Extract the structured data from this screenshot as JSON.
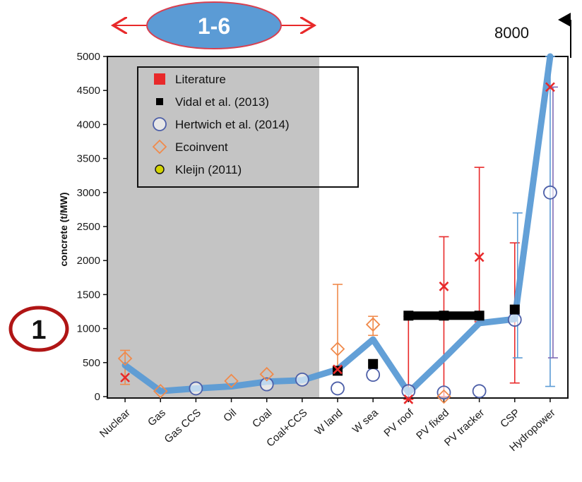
{
  "chart_data": {
    "type": "scatter",
    "title": "",
    "xlabel": "",
    "ylabel": "concrete (t/MW)",
    "ylim": [
      0,
      5000
    ],
    "yticks": [
      0,
      500,
      1000,
      1500,
      2000,
      2500,
      3000,
      3500,
      4000,
      4500,
      5000
    ],
    "categories": [
      "Nuclear",
      "Gas",
      "Gas CCS",
      "Oil",
      "Coal",
      "Coal+CCS",
      "W land",
      "W sea",
      "PV roof",
      "PV fixed",
      "PV tracker",
      "CSP",
      "Hydropower"
    ],
    "shaded_region_categories": [
      "Nuclear",
      "Gas",
      "Gas CCS",
      "Oil",
      "Coal",
      "Coal+CCS"
    ],
    "legend_position": "top-left",
    "trend_line": {
      "color": "#5b9bd5",
      "values": [
        460,
        80,
        120,
        150,
        220,
        240,
        400,
        840,
        60,
        560,
        1080,
        1140,
        5000
      ]
    },
    "series": [
      {
        "name": "Literature",
        "color": "#e8292a",
        "marker": "x",
        "points": [
          {
            "category": "Nuclear",
            "value": 280
          },
          {
            "category": "W land",
            "value": 400
          },
          {
            "category": "PV roof",
            "value": -40
          },
          {
            "category": "PV fixed",
            "value": 1620
          },
          {
            "category": "PV tracker",
            "value": 2050
          },
          {
            "category": "Hydropower",
            "value": 4550
          }
        ]
      },
      {
        "name": "Vidal et al. (2013)",
        "color": "#000000",
        "marker": "square",
        "points": [
          {
            "category": "W land",
            "value": 380
          },
          {
            "category": "W sea",
            "value": 480
          },
          {
            "category": "PV roof",
            "value": 1190
          },
          {
            "category": "PV fixed",
            "value": 1190
          },
          {
            "category": "PV tracker",
            "value": 1190
          },
          {
            "category": "CSP",
            "value": 1280
          }
        ]
      },
      {
        "name": "Hertwich et al. (2014)",
        "color": "#4d5fa8",
        "marker": "circle",
        "points": [
          {
            "category": "Gas CCS",
            "value": 120
          },
          {
            "category": "Coal",
            "value": 180
          },
          {
            "category": "Coal+CCS",
            "value": 250
          },
          {
            "category": "W land",
            "value": 120
          },
          {
            "category": "W sea",
            "value": 320
          },
          {
            "category": "PV roof",
            "value": 80
          },
          {
            "category": "PV fixed",
            "value": 60
          },
          {
            "category": "PV tracker",
            "value": 80
          },
          {
            "category": "CSP",
            "value": 1130
          },
          {
            "category": "Hydropower",
            "value": 3000
          }
        ]
      },
      {
        "name": "Ecoinvent",
        "color": "#f08a4b",
        "marker": "diamond",
        "points": [
          {
            "category": "Nuclear",
            "value": 560
          },
          {
            "category": "Gas",
            "value": 80
          },
          {
            "category": "Oil",
            "value": 230
          },
          {
            "category": "Coal",
            "value": 330
          },
          {
            "category": "W land",
            "value": 700
          },
          {
            "category": "W sea",
            "value": 1060
          },
          {
            "category": "PV fixed",
            "value": 0
          }
        ]
      },
      {
        "name": "Kleijn (2011)",
        "color": "#d4d400",
        "marker": "circle-filled",
        "points": []
      }
    ],
    "error_bars": [
      {
        "category": "Nuclear",
        "low": 180,
        "high": 680,
        "color": "#f08a4b"
      },
      {
        "category": "W land",
        "low": 350,
        "high": 1650,
        "color": "#f08a4b"
      },
      {
        "category": "W sea",
        "low": 900,
        "high": 1180,
        "color": "#f08a4b"
      },
      {
        "category": "PV roof",
        "low": -40,
        "high": 1180,
        "color": "#e8292a"
      },
      {
        "category": "PV fixed",
        "low": 0,
        "high": 2350,
        "color": "#e8292a"
      },
      {
        "category": "PV tracker",
        "low": 1100,
        "high": 3370,
        "color": "#e8292a"
      },
      {
        "category": "CSP",
        "low": 200,
        "high": 2260,
        "color": "#e8292a"
      },
      {
        "category": "CSP",
        "low": 570,
        "high": 2700,
        "color": "#5b9bd5"
      },
      {
        "category": "Hydropower",
        "low": 150,
        "high": 5000,
        "color": "#5b9bd5"
      },
      {
        "category": "Hydropower",
        "low": 570,
        "high": 4550,
        "color": "#7e6bb5"
      }
    ],
    "annotations": {
      "range_badge": "1-6",
      "circled_number": "1",
      "offscale_value": "8000"
    }
  }
}
